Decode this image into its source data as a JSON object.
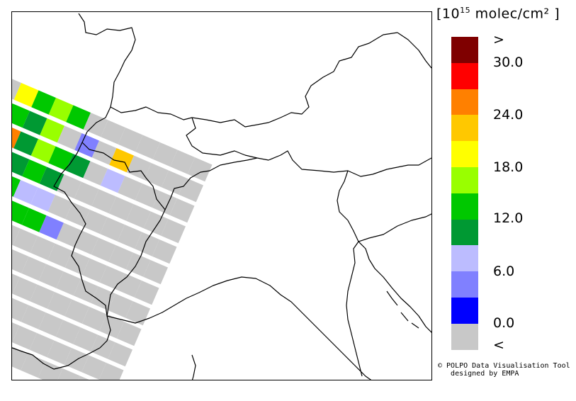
{
  "legend": {
    "unit_prefix": "[10",
    "unit_exp": "15",
    "unit_suffix": " molec/cm² ]",
    "colors": [
      "#7f0000",
      "#ff0000",
      "#ff8000",
      "#ffc800",
      "#ffff00",
      "#99ff00",
      "#00c800",
      "#009933",
      "#bcbcff",
      "#8080ff",
      "#0000ff",
      "#c8c8c8"
    ],
    "labels": [
      ">",
      "30.0",
      "24.0",
      "18.0",
      "12.0",
      "6.0",
      "0.0",
      "<"
    ]
  },
  "credit": {
    "line1": "© POLPO Data Visualisation Tool",
    "line2": "   designed by EMPA"
  },
  "swath": {
    "rows": [
      [
        "#c8c8c8",
        "#c8c8c8",
        "#ffff00",
        "#00c800",
        "#99ff00",
        "#00c800",
        "#c8c8c8",
        "#c8c8c8",
        "#c8c8c8",
        "#c8c8c8",
        "#c8c8c8",
        "#c8c8c8",
        "#c8c8c8"
      ],
      [
        "#ff8000",
        "#ffc800",
        "#00c800",
        "#009933",
        "#99ff00",
        "#c8c8c8",
        "#8080ff",
        "#c8c8c8",
        "#ffc800",
        "#c8c8c8",
        "#c8c8c8",
        "#c8c8c8",
        "#c8c8c8"
      ],
      [
        "#ffff00",
        "#ffff00",
        "#ff8000",
        "#009933",
        "#99ff00",
        "#00c800",
        "#009933",
        "#c8c8c8",
        "#bcbcff",
        "#c8c8c8",
        "#c8c8c8",
        "#c8c8c8",
        "#c8c8c8"
      ],
      [
        "#ffc800",
        "#ffff00",
        "#99ff00",
        "#009933",
        "#00c800",
        "#009933",
        "#c8c8c8",
        "#c8c8c8",
        "#c8c8c8",
        "#c8c8c8",
        "#c8c8c8",
        "#c8c8c8",
        "#c8c8c8"
      ],
      [
        "#00c800",
        "#ff0000",
        "#c8c8c8",
        "#00c800",
        "#bcbcff",
        "#bcbcff",
        "#c8c8c8",
        "#c8c8c8",
        "#c8c8c8",
        "#c8c8c8",
        "#c8c8c8",
        "#c8c8c8",
        "#c8c8c8"
      ],
      [
        "#ff8000",
        "#c8c8c8",
        "#c8c8c8",
        "#009933",
        "#00c800",
        "#00c800",
        "#8080ff",
        "#c8c8c8",
        "#c8c8c8",
        "#c8c8c8",
        "#c8c8c8",
        "#c8c8c8",
        "#c8c8c8"
      ],
      [
        "#c8c8c8",
        "#c8c8c8",
        "#c8c8c8",
        "#009933",
        "#c8c8c8",
        "#c8c8c8",
        "#c8c8c8",
        "#c8c8c8",
        "#c8c8c8",
        "#c8c8c8",
        "#c8c8c8",
        "#c8c8c8",
        "#c8c8c8"
      ],
      [
        "#ffff00",
        "#99ff00",
        "#009933",
        "#c8c8c8",
        "#c8c8c8",
        "#c8c8c8",
        "#c8c8c8",
        "#c8c8c8",
        "#c8c8c8",
        "#c8c8c8",
        "#c8c8c8",
        "#c8c8c8",
        "#c8c8c8"
      ],
      [
        "#009933",
        "#99ff00",
        "#c8c8c8",
        "#c8c8c8",
        "#c8c8c8",
        "#c8c8c8",
        "#c8c8c8",
        "#c8c8c8",
        "#c8c8c8",
        "#c8c8c8",
        "#c8c8c8",
        "#c8c8c8",
        "#c8c8c8"
      ],
      [
        "#00c800",
        "#c8c8c8",
        "#c8c8c8",
        "#c8c8c8",
        "#c8c8c8",
        "#c8c8c8",
        "#c8c8c8",
        "#c8c8c8",
        "#c8c8c8",
        "#c8c8c8",
        "#c8c8c8",
        "#c8c8c8",
        "#c8c8c8"
      ],
      [
        "#c8c8c8",
        "#c8c8c8",
        "#c8c8c8",
        "#c8c8c8",
        "#c8c8c8",
        "#c8c8c8",
        "#c8c8c8",
        "#c8c8c8",
        "#c8c8c8",
        "#c8c8c8",
        "#c8c8c8",
        "#c8c8c8",
        "#c8c8c8"
      ],
      [
        "#c8c8c8",
        "#c8c8c8",
        "#c8c8c8",
        "#c8c8c8",
        "#c8c8c8",
        "#c8c8c8",
        "#c8c8c8",
        "#c8c8c8",
        "#c8c8c8",
        "#c8c8c8",
        "#c8c8c8",
        "#c8c8c8",
        "#c8c8c8"
      ]
    ]
  }
}
